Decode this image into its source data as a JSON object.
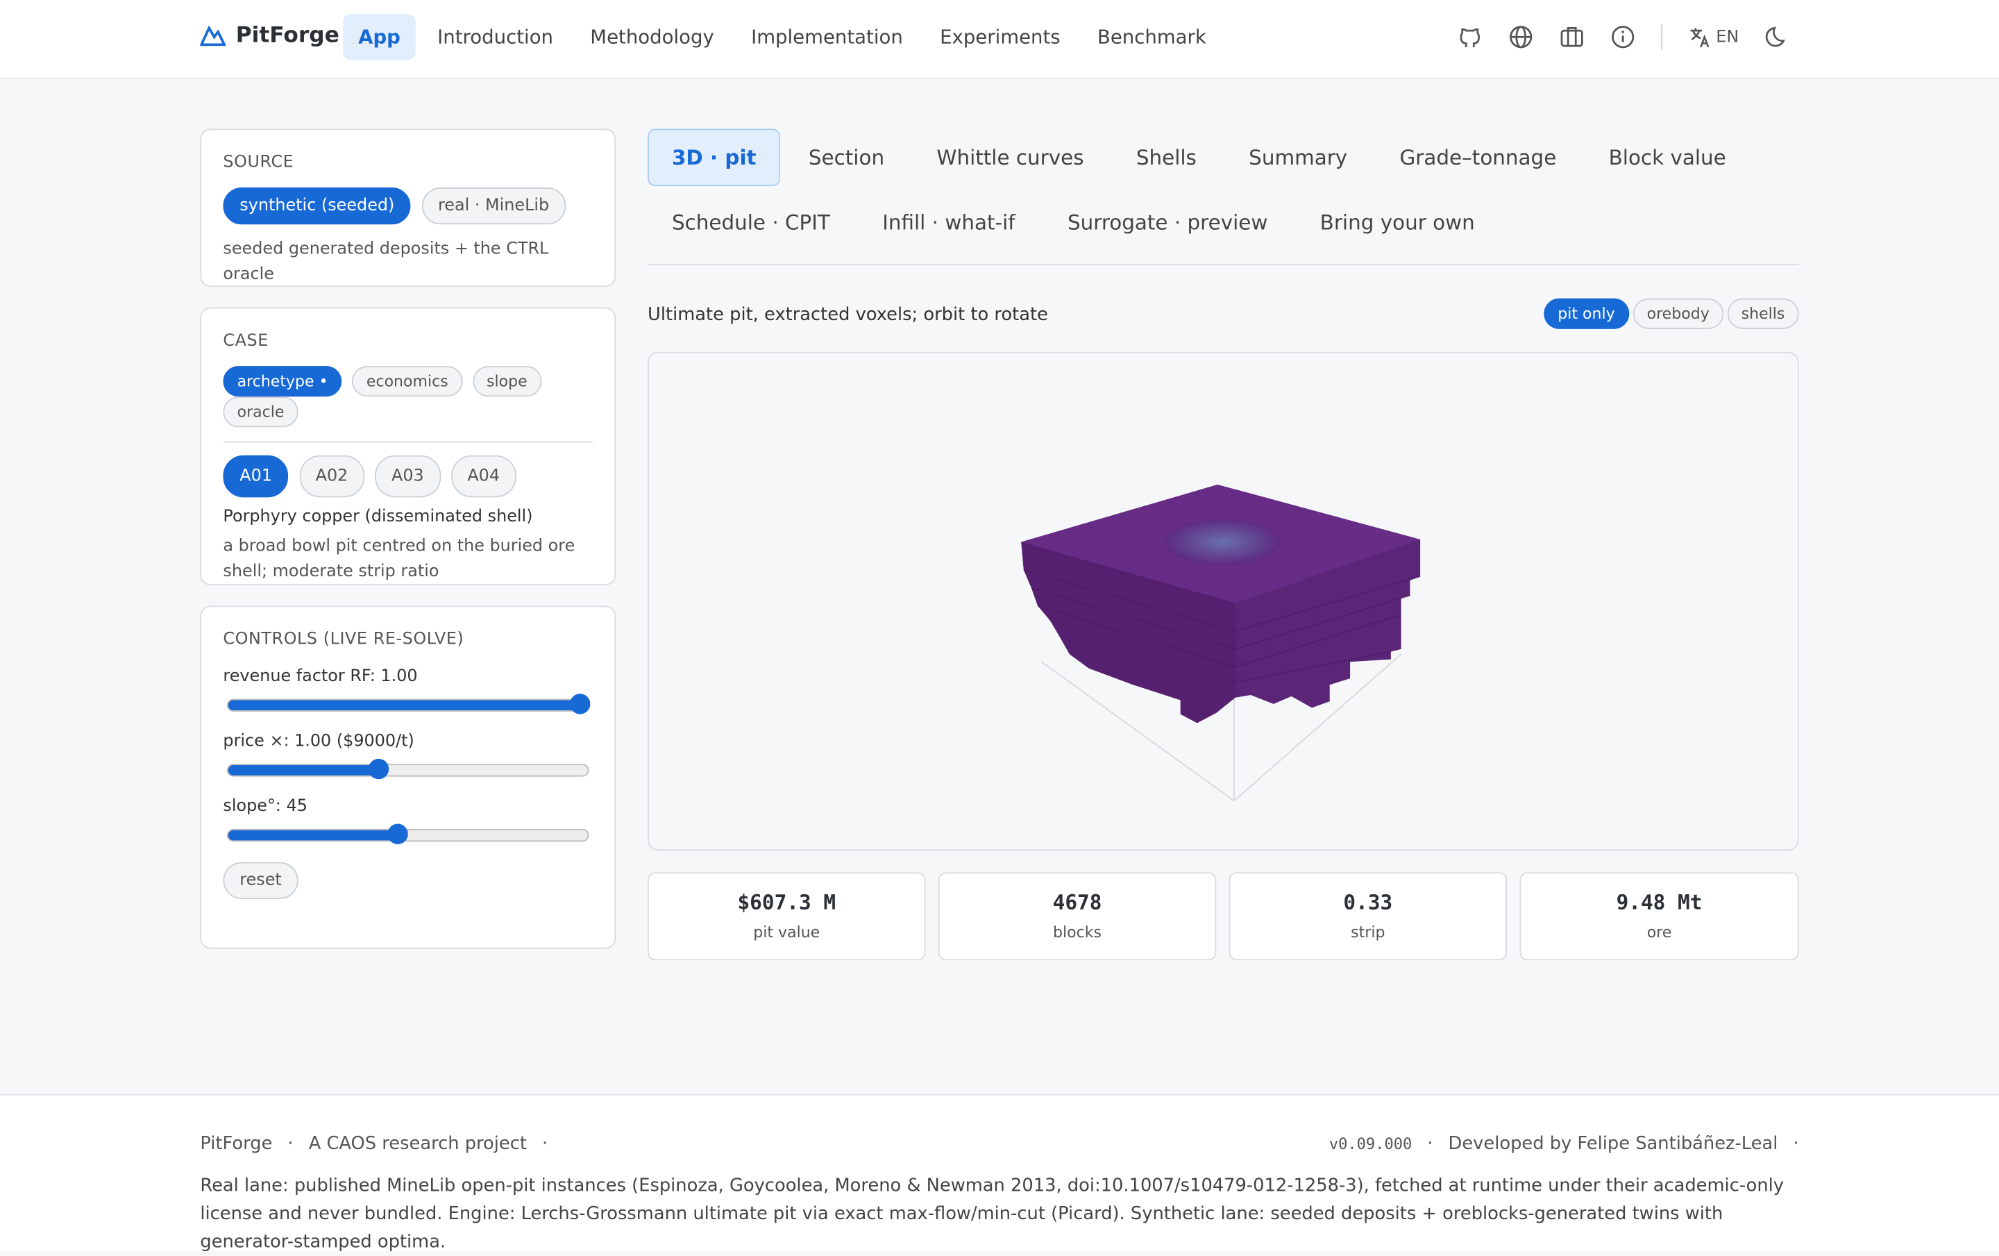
{
  "nav": {
    "brand": "PitForge",
    "links": [
      "App",
      "Introduction",
      "Methodology",
      "Implementation",
      "Experiments",
      "Benchmark"
    ],
    "lang": "EN"
  },
  "source": {
    "title": "SOURCE",
    "options": [
      "synthetic (seeded)",
      "real · MineLib"
    ],
    "note": "seeded generated deposits + the CTRL oracle"
  },
  "case": {
    "title": "CASE",
    "tabs": [
      "archetype •",
      "economics",
      "slope",
      "oracle"
    ],
    "cases": [
      "A01",
      "A02",
      "A03",
      "A04"
    ],
    "name": "Porphyry copper (disseminated shell)",
    "description": "a broad bowl pit centred on the buried ore shell; moderate strip ratio"
  },
  "controls": {
    "title": "CONTROLS (LIVE RE-SOLVE)",
    "sliders": [
      "revenue factor RF: 1.00",
      "price ×: 1.00 ($9000/t)",
      "slope°: 45"
    ],
    "reset": "reset"
  },
  "tabs": [
    "3D · pit",
    "Section",
    "Whittle curves",
    "Shells",
    "Summary",
    "Grade–tonnage",
    "Block value",
    "Schedule · CPIT",
    "Infill · what-if",
    "Surrogate · preview",
    "Bring your own"
  ],
  "view": {
    "caption": "Ultimate pit, extracted voxels; orbit to rotate",
    "modes": [
      "pit only",
      "orebody",
      "shells"
    ]
  },
  "stats": [
    {
      "value": "$607.3 M",
      "label": "pit value"
    },
    {
      "value": "4678",
      "label": "blocks"
    },
    {
      "value": "0.33",
      "label": "strip"
    },
    {
      "value": "9.48 Mt",
      "label": "ore"
    }
  ],
  "footer": {
    "brand": "PitForge",
    "project": "A CAOS research project",
    "version": "v0.09.000",
    "author": "Developed by Felipe Santibáñez-Leal",
    "text": "Real lane: published MineLib open-pit instances (Espinoza, Goycoolea, Moreno & Newman 2013, doi:10.1007/s10479-012-1258-3), fetched at runtime under their academic-only license and never bundled. Engine: Lerchs-Grossmann ultimate pit via exact max-flow/min-cut (Picard). Synthetic lane: seeded deposits + oreblocks-generated twins with generator-stamped optima."
  }
}
